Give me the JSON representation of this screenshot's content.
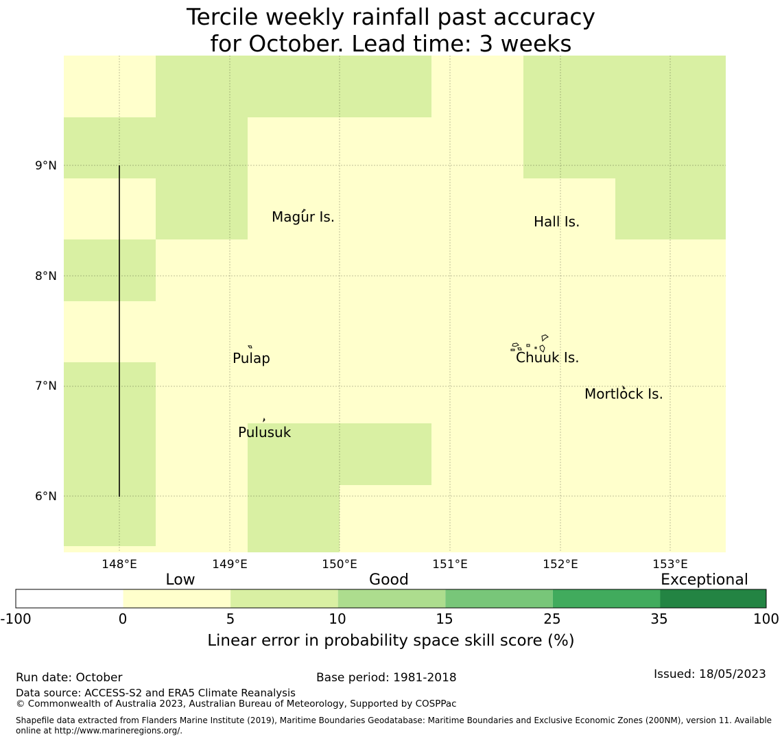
{
  "title": {
    "line1": "Tercile weekly rainfall past accuracy",
    "line2": "for October. Lead time: 3 weeks"
  },
  "map": {
    "lat_ticks": [
      "6°N",
      "7°N",
      "8°N",
      "9°N"
    ],
    "lon_ticks": [
      "148°E",
      "149°E",
      "150°E",
      "151°E",
      "152°E",
      "153°E"
    ],
    "places": [
      "Magur Is.",
      "Hall Is.",
      "Pulap",
      "Chuuk Is.",
      "Mortlock Is.",
      "Pulusuk"
    ]
  },
  "legend": {
    "categories": [
      "Low",
      "Good",
      "Exceptional"
    ],
    "ticks": [
      "-100",
      "0",
      "5",
      "10",
      "15",
      "25",
      "35",
      "100"
    ],
    "colors": [
      "#ffffff",
      "#ffffcc",
      "#d9f0a3",
      "#addd8e",
      "#78c679",
      "#41ab5d",
      "#238443"
    ],
    "label": "Linear error in probability space skill score (%)"
  },
  "footer": {
    "run_date": "Run date: October",
    "base_period": "Base period: 1981-2018",
    "issued": "Issued: 18/05/2023",
    "data_source": "Data source: ACCESS-S2 and ERA5 Climate Reanalysis",
    "copyright": "© Commonwealth of Australia 2023, Australian Bureau of Meteorology, Supported by COSPPac",
    "shapefile": "Shapefile data extracted from Flanders Marine Institute (2019), Maritime Boundaries Geodatabase: Maritime Boundaries and Exclusive Economic Zones (200NM), version 11. Available online at http://www.marineregions.org/."
  }
}
